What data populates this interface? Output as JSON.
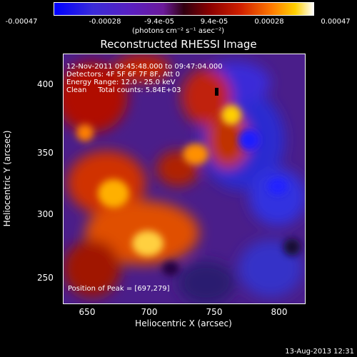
{
  "colorbar": {
    "ticks": [
      "-0.00047",
      "-0.00028",
      "-9.4e-05",
      "9.4e-05",
      "0.00028",
      "0.00047"
    ],
    "unit": "(photons cm⁻² s⁻¹ asec⁻²)"
  },
  "chart_data": {
    "type": "heatmap",
    "title": "Reconstructed RHESSI Image",
    "xlabel": "Heliocentric X (arcsec)",
    "ylabel": "Heliocentric Y (arcsec)",
    "xlim": [
      625,
      817
    ],
    "ylim": [
      230,
      427
    ],
    "x_ticks": [
      650,
      700,
      750,
      800
    ],
    "y_ticks": [
      250,
      300,
      350,
      400
    ],
    "color_range": [
      -0.00047,
      0.00047
    ],
    "peak": [
      697,
      279
    ],
    "annotations": {
      "time": "12-Nov-2011 09:45:48.000 to 09:47:04.000",
      "detectors": "Detectors: 4F 5F 6F 7F 8F, Att 0",
      "energy": "Energy Range: 12.0 - 25.0 keV",
      "clean": "Clean     Total counts: 5.84E+03",
      "peak_text": "Position of Peak = [697,279]"
    }
  },
  "footer": "13-Aug-2013 12:31"
}
